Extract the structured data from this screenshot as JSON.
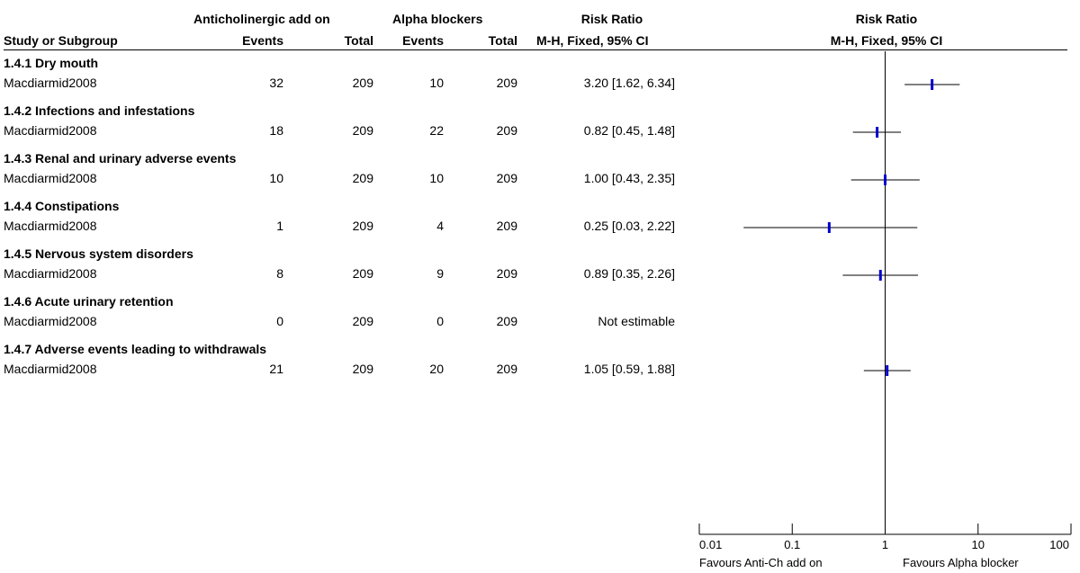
{
  "header": {
    "group1": "Anticholinergic add on",
    "group2": "Alpha blockers",
    "rr_title": "Risk Ratio",
    "plot_title": "Risk Ratio",
    "study_col": "Study or Subgroup",
    "events1": "Events",
    "total1": "Total",
    "events2": "Events",
    "total2": "Total",
    "rr_method": "M-H, Fixed, 95% CI",
    "plot_method": "M-H, Fixed, 95% CI"
  },
  "subgroups": [
    {
      "title": "1.4.1 Dry mouth",
      "study": "Macdiarmid2008",
      "e1": "32",
      "t1": "209",
      "e2": "10",
      "t2": "209",
      "rr_text": "3.20 [1.62, 6.34]"
    },
    {
      "title": "1.4.2 Infections and infestations",
      "study": "Macdiarmid2008",
      "e1": "18",
      "t1": "209",
      "e2": "22",
      "t2": "209",
      "rr_text": "0.82 [0.45, 1.48]"
    },
    {
      "title": "1.4.3 Renal and urinary adverse events",
      "study": "Macdiarmid2008",
      "e1": "10",
      "t1": "209",
      "e2": "10",
      "t2": "209",
      "rr_text": "1.00 [0.43, 2.35]"
    },
    {
      "title": "1.4.4 Constipations",
      "study": "Macdiarmid2008",
      "e1": "1",
      "t1": "209",
      "e2": "4",
      "t2": "209",
      "rr_text": "0.25 [0.03, 2.22]"
    },
    {
      "title": "1.4.5 Nervous system disorders",
      "study": "Macdiarmid2008",
      "e1": "8",
      "t1": "209",
      "e2": "9",
      "t2": "209",
      "rr_text": "0.89 [0.35, 2.26]"
    },
    {
      "title": "1.4.6 Acute urinary retention",
      "study": "Macdiarmid2008",
      "e1": "0",
      "t1": "209",
      "e2": "0",
      "t2": "209",
      "rr_text": "Not estimable"
    },
    {
      "title": "1.4.7 Adverse events leading to withdrawals",
      "study": "Macdiarmid2008",
      "e1": "21",
      "t1": "209",
      "e2": "20",
      "t2": "209",
      "rr_text": "1.05 [0.59, 1.88]"
    }
  ],
  "chart_data": {
    "type": "forest",
    "title": "Risk Ratio",
    "subtitle": "M-H, Fixed, 95% CI",
    "x_scale": "log",
    "x_range": [
      0.01,
      100
    ],
    "x_ticks": [
      0.01,
      0.1,
      1,
      10,
      100
    ],
    "x_tick_labels": [
      "0.01",
      "0.1",
      "1",
      "10",
      "100"
    ],
    "reference_line": 1,
    "left_label": "Favours Anti-Ch add on",
    "right_label": "Favours Alpha blocker",
    "marker_color": "#0000cc",
    "points": [
      {
        "rr": 3.2,
        "lo": 1.62,
        "hi": 6.34
      },
      {
        "rr": 0.82,
        "lo": 0.45,
        "hi": 1.48
      },
      {
        "rr": 1.0,
        "lo": 0.43,
        "hi": 2.35
      },
      {
        "rr": 0.25,
        "lo": 0.03,
        "hi": 2.22
      },
      {
        "rr": 0.89,
        "lo": 0.35,
        "hi": 2.26
      },
      null,
      {
        "rr": 1.05,
        "lo": 0.59,
        "hi": 1.88
      }
    ]
  }
}
